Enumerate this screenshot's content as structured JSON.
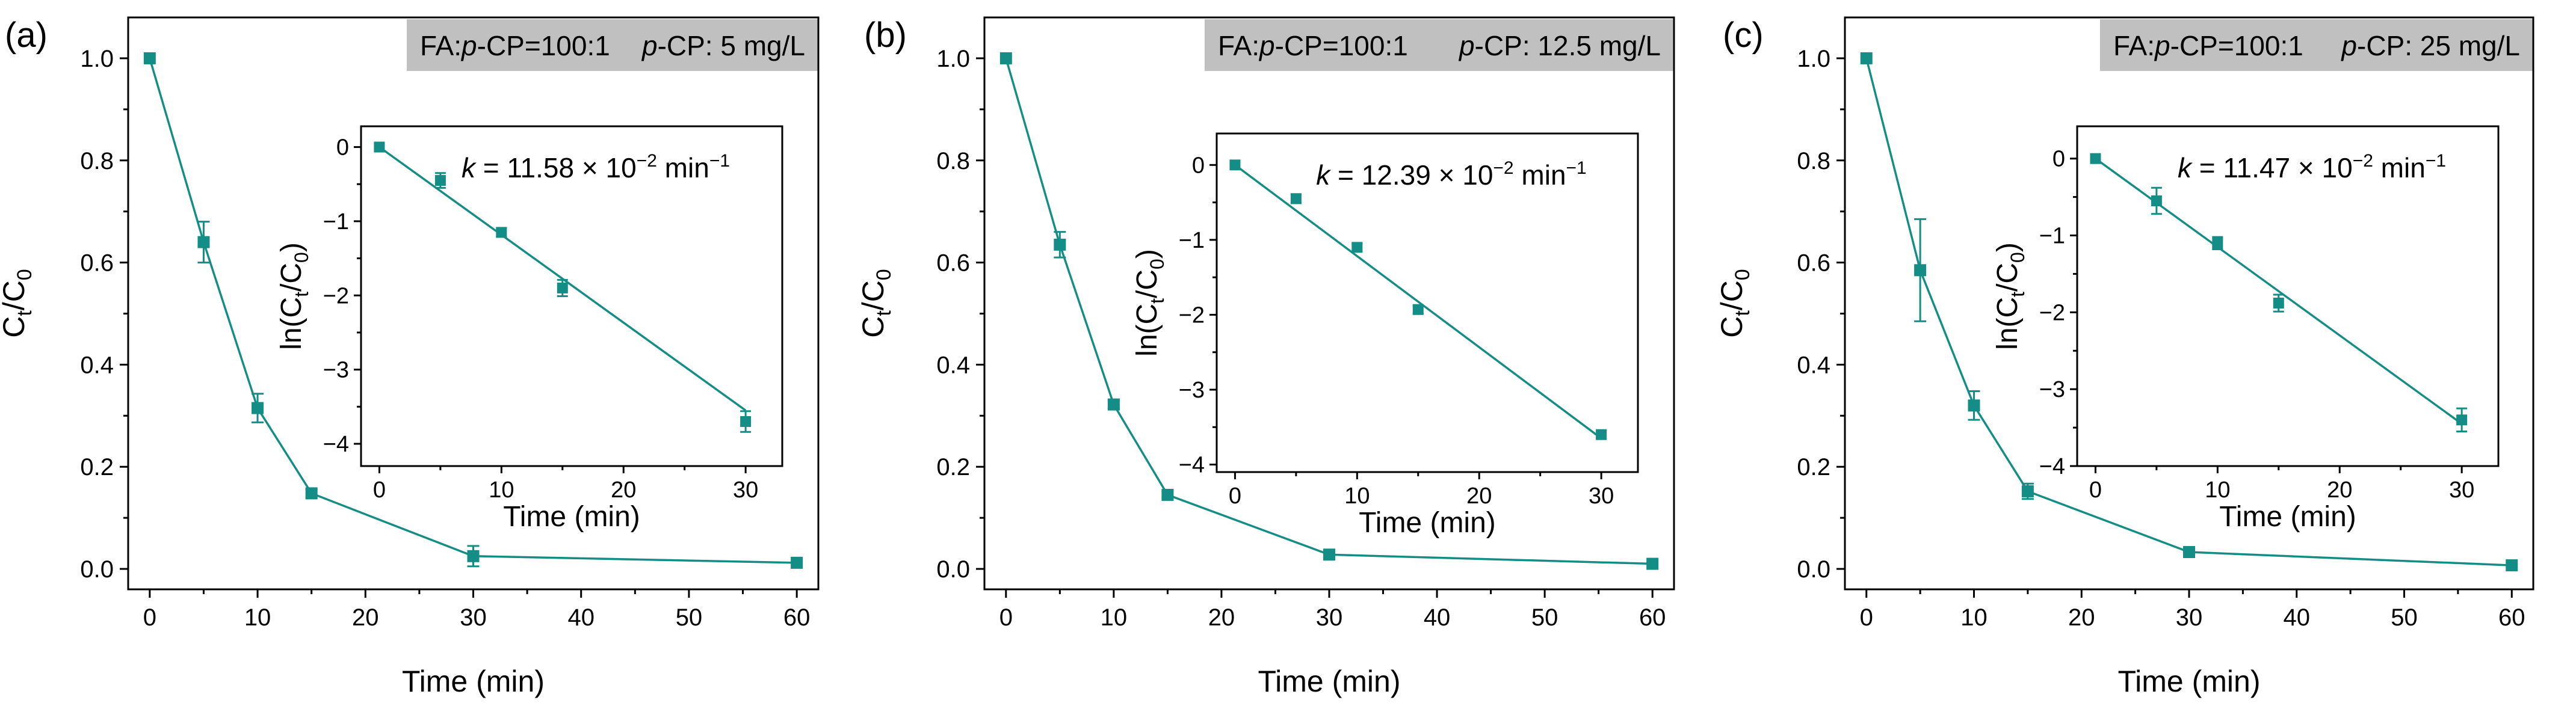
{
  "figure": {
    "line_color": "#138d86",
    "badge_color": "#c0c0c0",
    "shared": {
      "x_label": "Time (min)",
      "y_label_main": "C",
      "y_sub_t": "t",
      "y_sep": "/C",
      "y_sub_0": "0",
      "inset_x_label": "Time (min)",
      "inset_y_prefix": "ln(C",
      "inset_y_sep": "/C",
      "inset_y_suffix": ")",
      "fa_ratio_prefix": "FA:",
      "pcp_italic": "p",
      "fa_ratio_rest": "-CP=100:1",
      "pcp_rest": "-CP: ",
      "k_symbol": "k",
      "k_unit_part1": " × 10",
      "k_exp": "−2",
      "k_unit_part2": " min",
      "k_exp_unit": "−1"
    }
  },
  "chart_data": [
    {
      "type": "line",
      "panel_label": "(a)",
      "concentration": "5 mg/L",
      "x_ticks": [
        0,
        10,
        20,
        30,
        40,
        50,
        60
      ],
      "y_ticks": [
        "0.0",
        "0.2",
        "0.4",
        "0.6",
        "0.8",
        "1.0"
      ],
      "xlim": [
        -2,
        62
      ],
      "ylim": [
        -0.04,
        1.08
      ],
      "x": [
        0,
        5,
        10,
        15,
        30,
        60
      ],
      "y": [
        1.0,
        0.64,
        0.315,
        0.148,
        0.025,
        0.012
      ],
      "err": [
        0,
        0.04,
        0.028,
        0.008,
        0.02,
        0
      ],
      "inset": {
        "k_value": "11.58",
        "x_ticks": [
          0,
          10,
          20,
          30
        ],
        "y_ticks": [
          "0",
          "-1",
          "-2",
          "-3",
          "-4"
        ],
        "xlim": [
          -1.5,
          33
        ],
        "ylim": [
          -4.3,
          0.28
        ],
        "x": [
          0,
          5,
          10,
          15,
          30
        ],
        "y": [
          0,
          -0.45,
          -1.15,
          -1.9,
          -3.7
        ],
        "err": [
          0,
          0.1,
          0.06,
          0.11,
          0.14
        ],
        "fit": [
          [
            0,
            0
          ],
          [
            30,
            -3.55
          ]
        ]
      }
    },
    {
      "type": "line",
      "panel_label": "(b)",
      "concentration": "12.5 mg/L",
      "x_ticks": [
        0,
        10,
        20,
        30,
        40,
        50,
        60
      ],
      "y_ticks": [
        "0.0",
        "0.2",
        "0.4",
        "0.6",
        "0.8",
        "1.0"
      ],
      "xlim": [
        -2,
        62
      ],
      "ylim": [
        -0.04,
        1.08
      ],
      "x": [
        0,
        5,
        10,
        15,
        30,
        60
      ],
      "y": [
        1.0,
        0.635,
        0.322,
        0.145,
        0.028,
        0.01
      ],
      "err": [
        0,
        0.025,
        0.008,
        0.006,
        0.005,
        0
      ],
      "inset": {
        "k_value": "12.39",
        "x_ticks": [
          0,
          10,
          20,
          30
        ],
        "y_ticks": [
          "0",
          "-1",
          "-2",
          "-3",
          "-4"
        ],
        "xlim": [
          -1.5,
          33
        ],
        "ylim": [
          -4.1,
          0.42
        ],
        "x": [
          0,
          5,
          10,
          15,
          30
        ],
        "y": [
          0,
          -0.45,
          -1.1,
          -1.93,
          -3.6
        ],
        "err": [
          0,
          0.06,
          0.05,
          0.05,
          0.05
        ],
        "fit": [
          [
            0,
            0
          ],
          [
            30,
            -3.65
          ]
        ]
      }
    },
    {
      "type": "line",
      "panel_label": "(c)",
      "concentration": "25 mg/L",
      "x_ticks": [
        0,
        10,
        20,
        30,
        40,
        50,
        60
      ],
      "y_ticks": [
        "0.0",
        "0.2",
        "0.4",
        "0.6",
        "0.8",
        "1.0"
      ],
      "xlim": [
        -2,
        62
      ],
      "ylim": [
        -0.04,
        1.08
      ],
      "x": [
        0,
        5,
        10,
        15,
        30,
        60
      ],
      "y": [
        1.0,
        0.585,
        0.32,
        0.152,
        0.033,
        0.007
      ],
      "err": [
        0,
        0.1,
        0.028,
        0.015,
        0.006,
        0
      ],
      "inset": {
        "k_value": "11.47",
        "x_ticks": [
          0,
          10,
          20,
          30
        ],
        "y_ticks": [
          "0",
          "-1",
          "-2",
          "-3",
          "-4"
        ],
        "xlim": [
          -1.5,
          33
        ],
        "ylim": [
          -4.0,
          0.42
        ],
        "x": [
          0,
          5,
          10,
          15,
          30
        ],
        "y": [
          0,
          -0.55,
          -1.1,
          -1.88,
          -3.4
        ],
        "err": [
          0,
          0.17,
          0.08,
          0.11,
          0.15
        ],
        "fit": [
          [
            0,
            0
          ],
          [
            30,
            -3.45
          ]
        ]
      }
    }
  ]
}
